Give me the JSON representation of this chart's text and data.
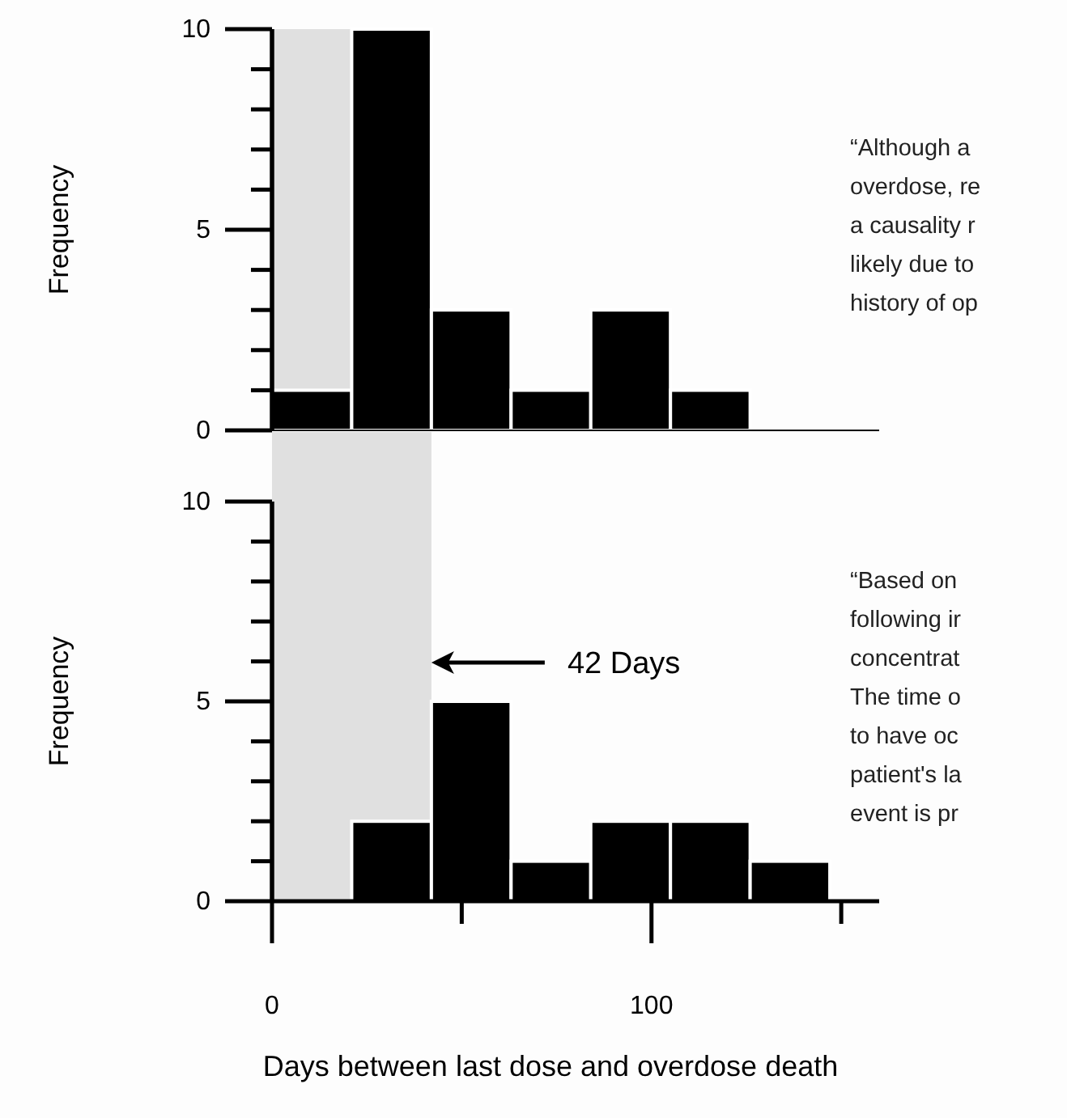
{
  "chart_data": [
    {
      "type": "histogram",
      "ylabel": "Frequency",
      "bins": [
        0,
        21,
        42,
        63,
        84,
        105,
        126,
        147
      ],
      "values": [
        1,
        10,
        3,
        1,
        3,
        1,
        0
      ],
      "color": "#000000",
      "xlim": [
        0,
        160
      ],
      "ylim": [
        0,
        10
      ],
      "yticks": [
        0,
        {
          "value": 1,
          "label": null
        },
        {
          "value": 2,
          "label": null
        },
        {
          "value": 3,
          "label": null
        },
        {
          "value": 4,
          "label": null
        },
        5,
        {
          "value": 6,
          "label": null
        },
        {
          "value": 7,
          "label": null
        },
        {
          "value": 8,
          "label": null
        },
        {
          "value": 9,
          "label": null
        },
        10
      ],
      "tick_labels": "y",
      "bands": [
        {
          "axis": "x",
          "from": 0,
          "to": 42,
          "color": "#e0e0e0"
        }
      ],
      "annotations": [
        "“Although a\noverdose, re\na causality r\nlikely due to\nhistory of op"
      ]
    },
    {
      "type": "histogram",
      "ylabel": "Frequency",
      "xlabel": "Days between last dose and overdose death",
      "bins": [
        0,
        21,
        42,
        63,
        84,
        105,
        126,
        147
      ],
      "values": [
        0,
        2,
        5,
        1,
        2,
        2,
        1
      ],
      "color": "#000000",
      "xlim": [
        0,
        160
      ],
      "ylim": [
        0,
        10
      ],
      "xticks": [
        0,
        {
          "value": 50,
          "label": null
        },
        100,
        {
          "value": 150,
          "label": null
        }
      ],
      "yticks": [
        0,
        {
          "value": 1,
          "label": null
        },
        {
          "value": 2,
          "label": null
        },
        {
          "value": 3,
          "label": null
        },
        {
          "value": 4,
          "label": null
        },
        5,
        {
          "value": 6,
          "label": null
        },
        {
          "value": 7,
          "label": null
        },
        {
          "value": 8,
          "label": null
        },
        {
          "value": 9,
          "label": null
        },
        10
      ],
      "bands": [
        {
          "axis": "x",
          "from": 0,
          "to": 42,
          "color": "#e0e0e0"
        }
      ],
      "annotations": [
        "42 Days",
        "“Based on\nfollowing ir\nconcentrat\nThe time o\nto have oc\npatient's la\nevent is pr"
      ]
    }
  ]
}
